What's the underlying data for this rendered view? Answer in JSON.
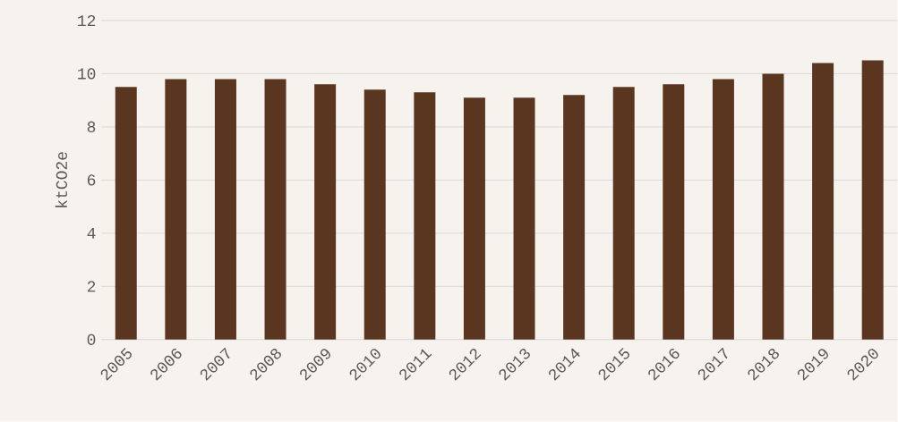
{
  "chart_data": {
    "type": "bar",
    "ylabel": "ktCO2e",
    "categories": [
      "2005",
      "2006",
      "2007",
      "2008",
      "2009",
      "2010",
      "2011",
      "2012",
      "2013",
      "2014",
      "2015",
      "2016",
      "2017",
      "2018",
      "2019",
      "2020"
    ],
    "values": [
      9.5,
      9.8,
      9.8,
      9.8,
      9.6,
      9.4,
      9.3,
      9.1,
      9.1,
      9.2,
      9.5,
      9.6,
      9.8,
      10.0,
      10.4,
      10.5
    ],
    "color": "#5a3520",
    "ylim": [
      0,
      12
    ],
    "yticks": [
      0,
      2,
      4,
      6,
      8,
      10,
      12
    ],
    "grid": "y"
  }
}
